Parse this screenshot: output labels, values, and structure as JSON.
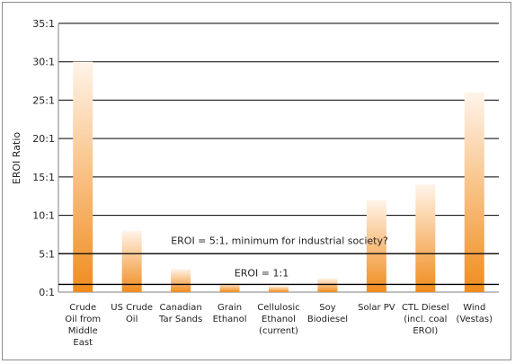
{
  "chart_data": {
    "type": "bar",
    "title": "",
    "xlabel": "",
    "ylabel": "EROI Ratio",
    "ylim": [
      0,
      35
    ],
    "ytick_labels": [
      "0:1",
      "5:1",
      "10:1",
      "15:1",
      "20:1",
      "25:1",
      "30:1",
      "35:1"
    ],
    "categories": [
      "Crude Oil from Middle East",
      "US Crude Oil",
      "Canadian Tar Sands",
      "Grain Ethanol",
      "Cellulosic Ethanol (current)",
      "Soy Biodiesel",
      "Solar PV",
      "CTL Diesel (incl. coal EROI)",
      "Wind (Vestas)"
    ],
    "category_lines": [
      [
        "Crude",
        "Oil from",
        "Middle",
        "East"
      ],
      [
        "US Crude",
        "Oil"
      ],
      [
        "Canadian",
        "Tar Sands"
      ],
      [
        "Grain",
        "Ethanol"
      ],
      [
        "Cellulosic",
        "Ethanol",
        "(current)"
      ],
      [
        "Soy",
        "Biodiesel"
      ],
      [
        "Solar PV"
      ],
      [
        "CTL Diesel",
        "(incl. coal",
        "EROI)"
      ],
      [
        "Wind",
        "(Vestas)"
      ]
    ],
    "values": [
      30,
      8,
      3,
      1.2,
      0.8,
      1.8,
      12,
      14,
      26
    ],
    "grid": true,
    "reference_lines": [
      {
        "value": 5,
        "label": "EROI = 5:1, minimum for industrial society?"
      },
      {
        "value": 1,
        "label": "EROI = 1:1"
      }
    ],
    "colors": {
      "bar_base": "#f08c1e",
      "bar_top": "#fff4ea",
      "grid": "#000000",
      "axis": "#7f7f7f"
    }
  }
}
